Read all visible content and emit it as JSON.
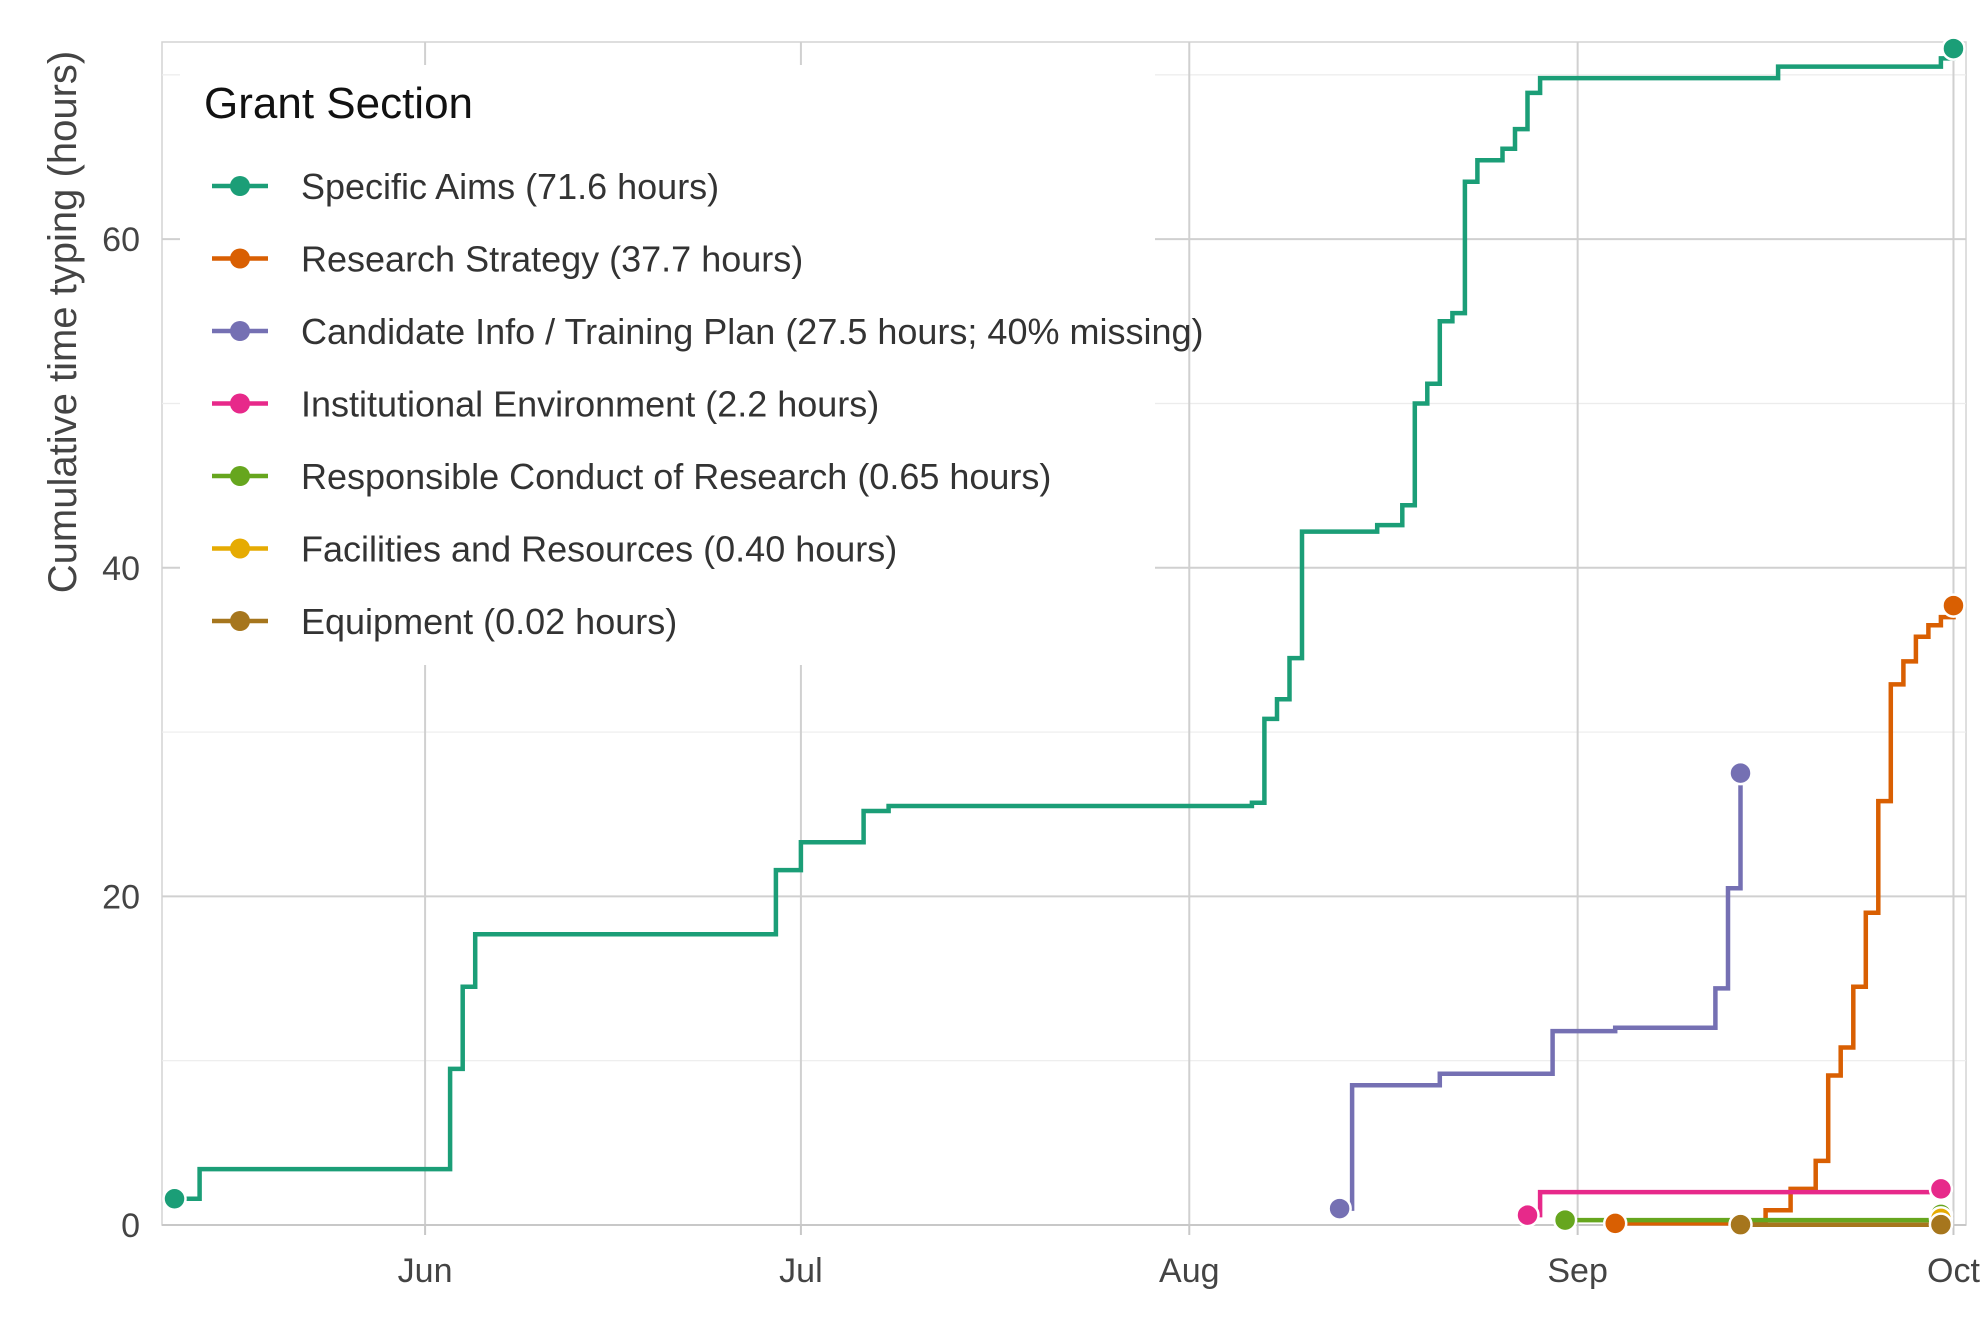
{
  "chart_data": {
    "type": "line",
    "line_shape": "step",
    "ylabel": "Cumulative time typing (hours)",
    "xlabel": "",
    "x_type": "date",
    "xlim": [
      "2021-05-11",
      "2021-10-02"
    ],
    "ylim": [
      0,
      72
    ],
    "x_ticks": [
      {
        "date": "2021-06-01",
        "label": "Jun"
      },
      {
        "date": "2021-07-01",
        "label": "Jul"
      },
      {
        "date": "2021-08-01",
        "label": "Aug"
      },
      {
        "date": "2021-09-01",
        "label": "Sep"
      },
      {
        "date": "2021-10-01",
        "label": "Oct"
      }
    ],
    "y_ticks": [
      0,
      20,
      40,
      60
    ],
    "grid": true,
    "legend": {
      "title": "Grant Section",
      "position": "top-left"
    },
    "series": [
      {
        "name": "Specific Aims (71.6 hours)",
        "color": "#1b9e77",
        "x": [
          "2021-05-12",
          "2021-05-14",
          "2021-06-03",
          "2021-06-03",
          "2021-06-04",
          "2021-06-04",
          "2021-06-05",
          "2021-06-28",
          "2021-06-29",
          "2021-07-01",
          "2021-07-06",
          "2021-07-08",
          "2021-08-06",
          "2021-08-07",
          "2021-08-08",
          "2021-08-09",
          "2021-08-10",
          "2021-08-16",
          "2021-08-18",
          "2021-08-19",
          "2021-08-20",
          "2021-08-21",
          "2021-08-22",
          "2021-08-23",
          "2021-08-24",
          "2021-08-26",
          "2021-08-27",
          "2021-08-28",
          "2021-08-29",
          "2021-08-30",
          "2021-08-31",
          "2021-09-01",
          "2021-09-17",
          "2021-09-30",
          "2021-10-01"
        ],
        "y": [
          1.6,
          3.4,
          3.4,
          9.5,
          10.5,
          14.5,
          17.7,
          17.7,
          21.6,
          23.3,
          25.2,
          25.5,
          25.7,
          30.8,
          32.0,
          34.5,
          42.2,
          42.6,
          43.8,
          50.0,
          51.2,
          55.0,
          55.5,
          63.5,
          64.8,
          65.5,
          66.7,
          68.9,
          69.8,
          69.8,
          69.8,
          69.8,
          70.5,
          71.0,
          71.6
        ]
      },
      {
        "name": "Research Strategy (37.7 hours)",
        "color": "#d95f02",
        "x": [
          "2021-09-04",
          "2021-09-16",
          "2021-09-18",
          "2021-09-20",
          "2021-09-21",
          "2021-09-22",
          "2021-09-23",
          "2021-09-24",
          "2021-09-25",
          "2021-09-26",
          "2021-09-27",
          "2021-09-28",
          "2021-09-29",
          "2021-09-30",
          "2021-10-01"
        ],
        "y": [
          0.1,
          0.9,
          2.2,
          3.9,
          9.1,
          10.8,
          14.5,
          19.0,
          25.8,
          32.9,
          34.3,
          35.8,
          36.5,
          37.0,
          37.7
        ]
      },
      {
        "name": "Candidate Info / Training Plan (27.5 hours; 40% missing)",
        "color": "#7570b3",
        "x": [
          "2021-08-13",
          "2021-08-14",
          "2021-08-21",
          "2021-08-30",
          "2021-09-04",
          "2021-09-12",
          "2021-09-13",
          "2021-09-14"
        ],
        "y": [
          1.0,
          8.5,
          9.2,
          11.8,
          12.0,
          14.4,
          20.5,
          27.5
        ]
      },
      {
        "name": "Institutional Environment (2.2 hours)",
        "color": "#e7298a",
        "x": [
          "2021-08-28",
          "2021-08-29",
          "2021-09-30"
        ],
        "y": [
          0.6,
          2.0,
          2.2
        ]
      },
      {
        "name": "Responsible Conduct of Research (0.65 hours)",
        "color": "#66a61e",
        "x": [
          "2021-08-31",
          "2021-09-30"
        ],
        "y": [
          0.3,
          0.65
        ]
      },
      {
        "name": "Facilities and Resources (0.40 hours)",
        "color": "#e6ab02",
        "x": [
          "2021-09-30"
        ],
        "y": [
          0.4
        ]
      },
      {
        "name": "Equipment (0.02 hours)",
        "color": "#a6761d",
        "x": [
          "2021-09-14",
          "2021-09-30"
        ],
        "y": [
          0.02,
          0.02
        ]
      }
    ]
  }
}
